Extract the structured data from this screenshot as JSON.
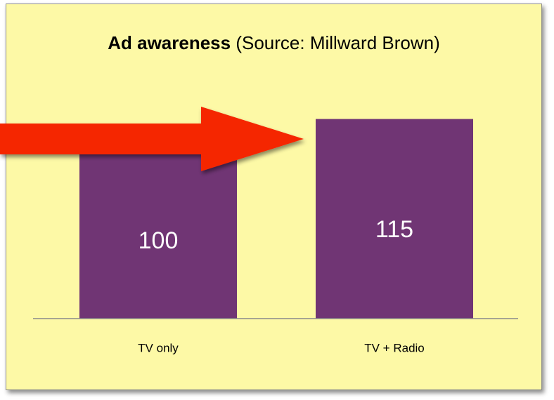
{
  "title": {
    "bold": "Ad awareness",
    "rest": " (Source: Millward Brown)"
  },
  "colors": {
    "background": "#fdf9a6",
    "bar": "#703574",
    "arrow": "#f52500",
    "baseline": "#8a8a8a"
  },
  "chart_data": {
    "type": "bar",
    "title": "Ad awareness (Source: Millward Brown)",
    "xlabel": "",
    "ylabel": "",
    "categories": [
      "TV only",
      "TV + Radio"
    ],
    "values": [
      100,
      115
    ],
    "data_labels": [
      "100",
      "115"
    ],
    "ylim": [
      0,
      131
    ],
    "grid": false,
    "legend": "none"
  },
  "annotation": {
    "icon": "red-arrow-icon",
    "points_to": "TV + Radio"
  }
}
